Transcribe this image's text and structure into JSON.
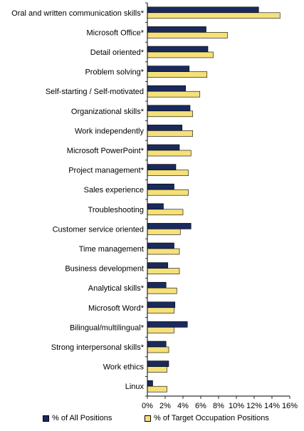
{
  "chart_data": {
    "type": "bar",
    "orientation": "horizontal",
    "categories": [
      "Oral and written communication skills*",
      "Microsoft Office*",
      "Detail oriented*",
      "Problem solving*",
      "Self-starting / Self-motivated",
      "Organizational skills*",
      "Work independently",
      "Microsoft PowerPoint*",
      "Project management*",
      "Sales experience",
      "Troubleshooting",
      "Customer service oriented",
      "Time management",
      "Business development",
      "Analytical skills*",
      "Microsoft Word*",
      "Bilingual/multilingual*",
      "Strong interpersonal skills*",
      "Work ethics",
      "Linux"
    ],
    "series": [
      {
        "name": "% of All Positions",
        "color": "#1a2a5c",
        "values": [
          12.5,
          6.6,
          6.8,
          4.7,
          4.3,
          4.8,
          3.9,
          3.6,
          3.2,
          3.0,
          1.8,
          4.9,
          3.0,
          2.3,
          2.1,
          3.1,
          4.5,
          2.1,
          2.4,
          0.6
        ]
      },
      {
        "name": "% of Target Occupation Positions",
        "color": "#f5e07a",
        "values": [
          14.9,
          9.0,
          7.4,
          6.7,
          5.9,
          5.1,
          5.1,
          4.9,
          4.6,
          4.6,
          4.0,
          3.7,
          3.6,
          3.6,
          3.3,
          3.0,
          3.0,
          2.4,
          2.2,
          2.2
        ]
      }
    ],
    "x_ticks": [
      "0%",
      "2%",
      "4%",
      "6%",
      "8%",
      "10%",
      "12%",
      "14%",
      "16%"
    ],
    "xlim": [
      0,
      16
    ],
    "grid": false,
    "legend_position": "bottom"
  }
}
